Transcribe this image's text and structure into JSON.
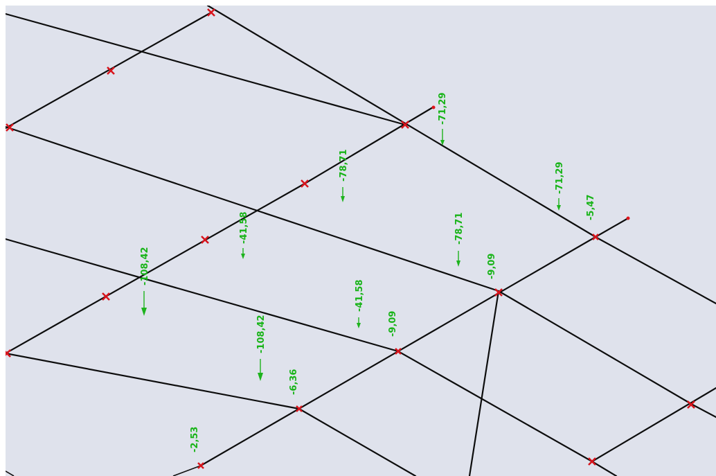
{
  "view": {
    "background": "#dfe2ec",
    "member_color": "#0d0d0d",
    "node_color": "#d8141c",
    "load_color": "#1db31d"
  },
  "loads": [
    {
      "id": "l1",
      "text": "-71,29"
    },
    {
      "id": "l2",
      "text": "-78,71"
    },
    {
      "id": "l3",
      "text": "-71,29"
    },
    {
      "id": "l4",
      "text": "-5,47"
    },
    {
      "id": "l5",
      "text": "-41,58"
    },
    {
      "id": "l6",
      "text": "-78,71"
    },
    {
      "id": "l7",
      "text": "-9,09"
    },
    {
      "id": "l8",
      "text": "-108,42"
    },
    {
      "id": "l9",
      "text": "-41,58"
    },
    {
      "id": "l10",
      "text": "-9,09"
    },
    {
      "id": "l11",
      "text": "-108,42"
    },
    {
      "id": "l12",
      "text": "-6,36"
    },
    {
      "id": "l13",
      "text": "-2,53"
    }
  ]
}
